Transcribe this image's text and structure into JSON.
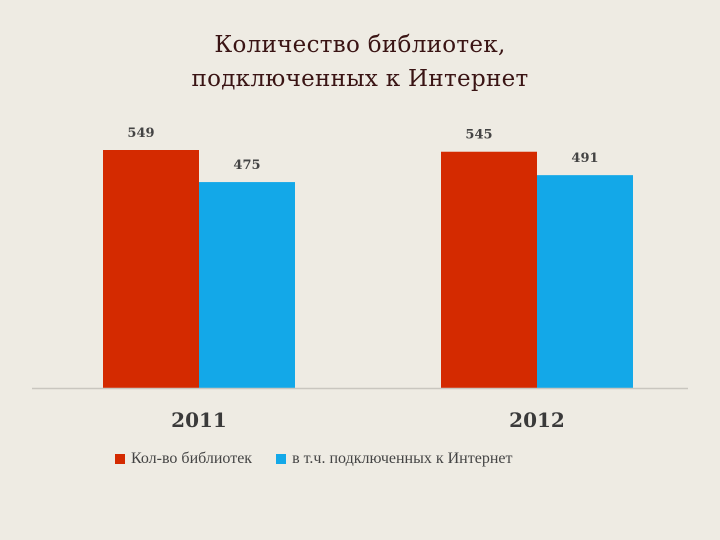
{
  "title_line1": "Количество библиотек,",
  "title_line2": "подключенных к Интернет",
  "chart_data": {
    "type": "bar",
    "categories": [
      "2011",
      "2012"
    ],
    "series": [
      {
        "name": "Кол-во библиотек",
        "values": [
          549,
          545
        ],
        "color": "#d42a00"
      },
      {
        "name": "в т.ч. подключенных к Интернет",
        "values": [
          475,
          491
        ],
        "color": "#13a8e8"
      }
    ],
    "ylim": [
      0,
      620
    ],
    "grid": false,
    "legend_position": "bottom"
  }
}
